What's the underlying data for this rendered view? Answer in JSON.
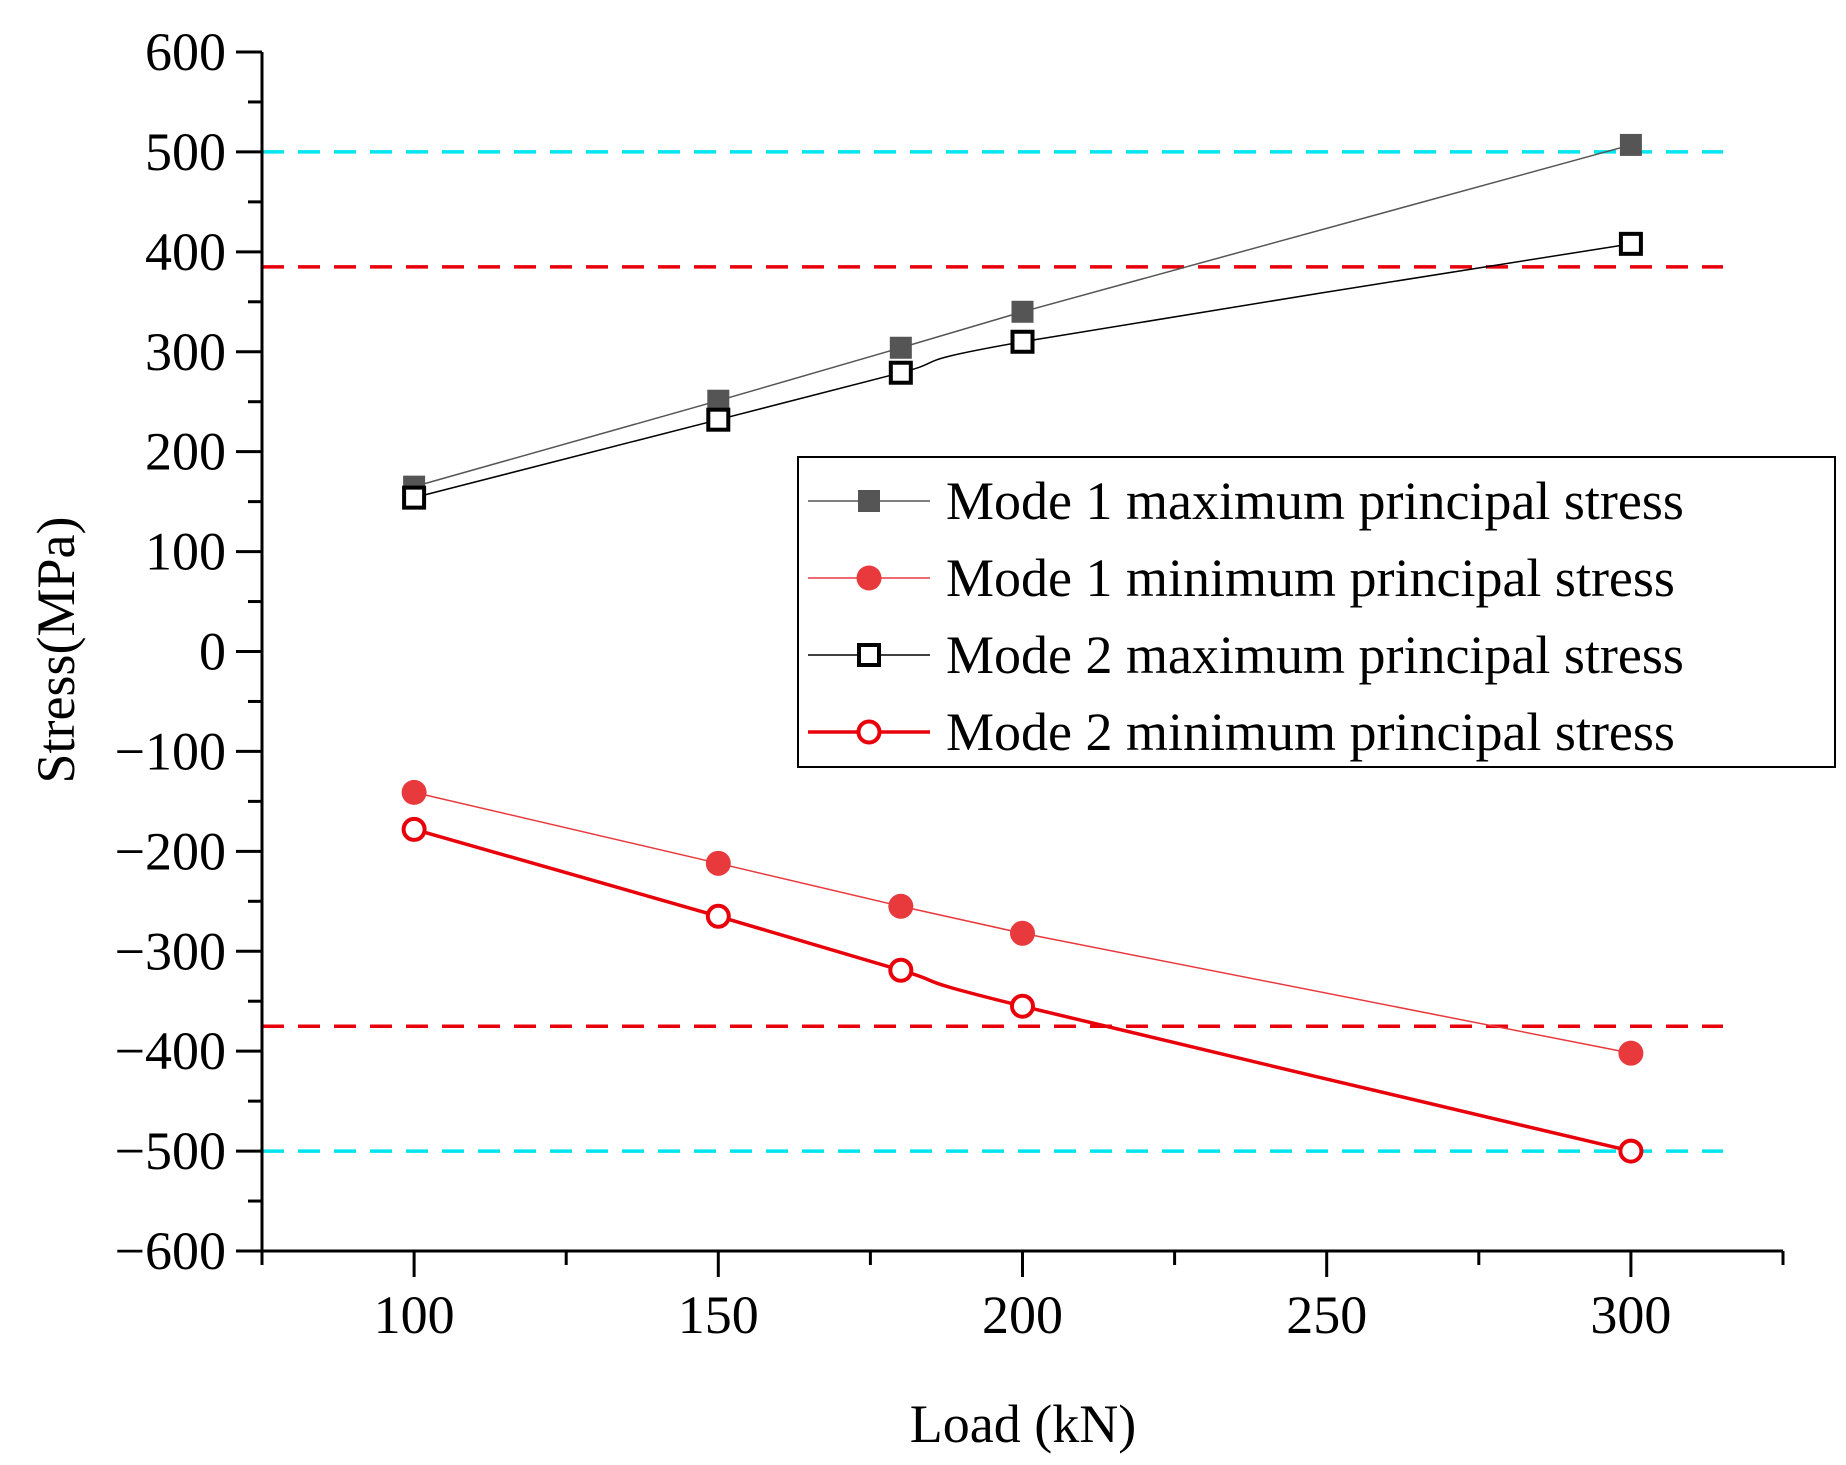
{
  "chart_data": {
    "type": "line",
    "xlabel": "Load (kN)",
    "ylabel": "Stress(MPa)",
    "xlim": [
      75,
      325
    ],
    "ylim": [
      -600,
      600
    ],
    "x_ticks": [
      100,
      150,
      200,
      250,
      300
    ],
    "y_ticks": [
      600,
      500,
      400,
      300,
      200,
      100,
      0,
      -100,
      -200,
      -300,
      -400,
      -500,
      -600
    ],
    "x_tick_labels": [
      "100",
      "150",
      "200",
      "250",
      "300"
    ],
    "y_tick_labels": [
      "600",
      "500",
      "400",
      "300",
      "200",
      "100",
      "0",
      "−100",
      "−200",
      "−300",
      "−400",
      "−500",
      "−600"
    ],
    "grid": false,
    "legend_position": "right",
    "x": [
      100,
      150,
      180,
      200,
      300
    ],
    "series": [
      {
        "name": "Mode 1 maximum principal stress",
        "values": [
          165,
          251,
          304,
          340,
          507
        ],
        "color": "#555555",
        "marker": "filled-square",
        "smooth": false
      },
      {
        "name": "Mode 1 minimum principal stress",
        "values": [
          -141,
          -212,
          -255,
          -282,
          -402
        ],
        "color": "#e8393d",
        "marker": "filled-circle",
        "smooth": false
      },
      {
        "name": "Mode 2 maximum principal stress",
        "values": [
          154,
          232,
          279,
          310,
          408
        ],
        "color": "#000000",
        "marker": "open-square",
        "smooth": true
      },
      {
        "name": "Mode 2 minimum principal stress",
        "values": [
          -178,
          -265,
          -319,
          -355,
          -500
        ],
        "color": "#e8000b",
        "marker": "open-circle",
        "smooth": true
      }
    ],
    "reference_lines": [
      {
        "y": 500,
        "color": "#00e5ee",
        "style": "dashed"
      },
      {
        "y": 385,
        "color": "#e8000b",
        "style": "dashed"
      },
      {
        "y": -375,
        "color": "#e8000b",
        "style": "dashed"
      },
      {
        "y": -500,
        "color": "#00e5ee",
        "style": "dashed"
      }
    ]
  }
}
